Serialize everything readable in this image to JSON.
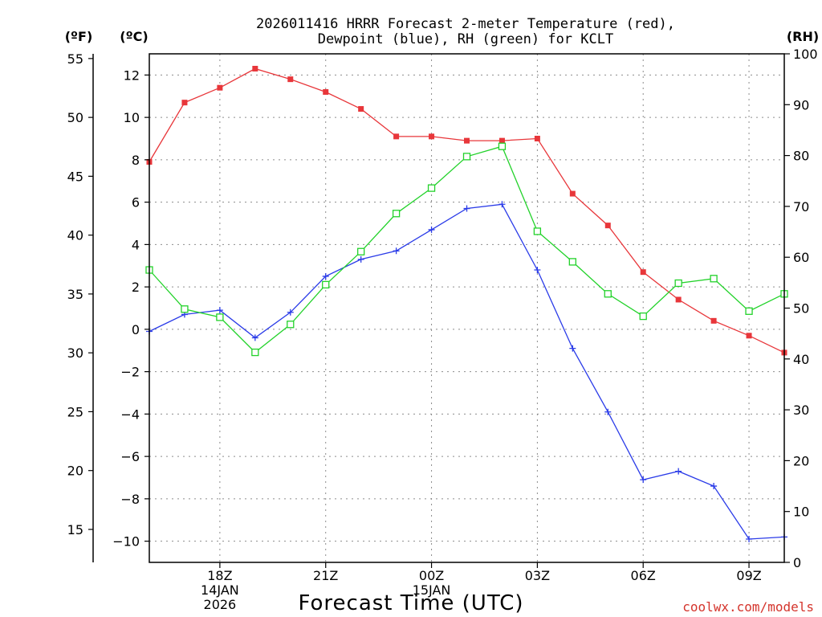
{
  "chart_data": {
    "type": "line",
    "title_lines": [
      "2026011416 HRRR Forecast 2-meter Temperature (red),",
      "Dewpoint (blue), RH (green) for KCLT"
    ],
    "units": {
      "fahrenheit": "(ºF)",
      "celsius": "(ºC)",
      "rh": "(RH)"
    },
    "xlabel": "Forecast Time (UTC)",
    "credit": "coolwx.com/models",
    "x_hours": [
      16,
      17,
      18,
      19,
      20,
      21,
      22,
      23,
      24,
      25,
      26,
      27,
      28,
      29,
      30,
      31,
      32,
      33,
      34
    ],
    "x_ticks": [
      {
        "hour": 18,
        "lines": [
          "18Z",
          "14JAN",
          "2026"
        ]
      },
      {
        "hour": 21,
        "lines": [
          "21Z"
        ]
      },
      {
        "hour": 24,
        "lines": [
          "00Z",
          "15JAN"
        ]
      },
      {
        "hour": 27,
        "lines": [
          "03Z"
        ]
      },
      {
        "hour": 30,
        "lines": [
          "06Z"
        ]
      },
      {
        "hour": 33,
        "lines": [
          "09Z"
        ]
      }
    ],
    "celsius_axis": {
      "min": -11,
      "max": 13,
      "ticks": [
        12,
        10,
        8,
        6,
        4,
        2,
        0,
        -2,
        -4,
        -6,
        -8,
        -10
      ]
    },
    "fahrenheit_ticks": [
      55,
      50,
      45,
      40,
      35,
      30,
      25,
      20,
      15
    ],
    "rh_axis": {
      "min": 0,
      "max": 100,
      "ticks": [
        100,
        90,
        80,
        70,
        60,
        50,
        40,
        30,
        20,
        10,
        0
      ]
    },
    "series": [
      {
        "name": "2-meter Temperature",
        "unit": "C",
        "color": "#e8363a",
        "marker": "filled-square",
        "values": [
          7.9,
          10.7,
          11.4,
          12.3,
          11.8,
          11.2,
          10.4,
          9.1,
          9.1,
          8.9,
          8.9,
          9.0,
          6.4,
          4.9,
          2.7,
          1.4,
          0.4,
          -0.3,
          -1.1
        ]
      },
      {
        "name": "Dewpoint",
        "unit": "C",
        "color": "#2a3be8",
        "marker": "plus",
        "values": [
          -0.1,
          0.7,
          0.9,
          -0.4,
          0.8,
          2.5,
          3.3,
          3.7,
          4.7,
          5.7,
          5.9,
          2.8,
          -0.9,
          -3.9,
          -7.1,
          -6.7,
          -7.4,
          -9.9,
          -9.8
        ]
      },
      {
        "name": "RH",
        "unit": "%",
        "color": "#22d22a",
        "marker": "open-square",
        "values": [
          57.5,
          49.8,
          48.2,
          41.3,
          46.8,
          54.6,
          61.1,
          68.6,
          73.6,
          79.8,
          81.8,
          65.1,
          59.1,
          52.8,
          48.4,
          54.9,
          55.8,
          49.4,
          52.8
        ]
      }
    ]
  }
}
